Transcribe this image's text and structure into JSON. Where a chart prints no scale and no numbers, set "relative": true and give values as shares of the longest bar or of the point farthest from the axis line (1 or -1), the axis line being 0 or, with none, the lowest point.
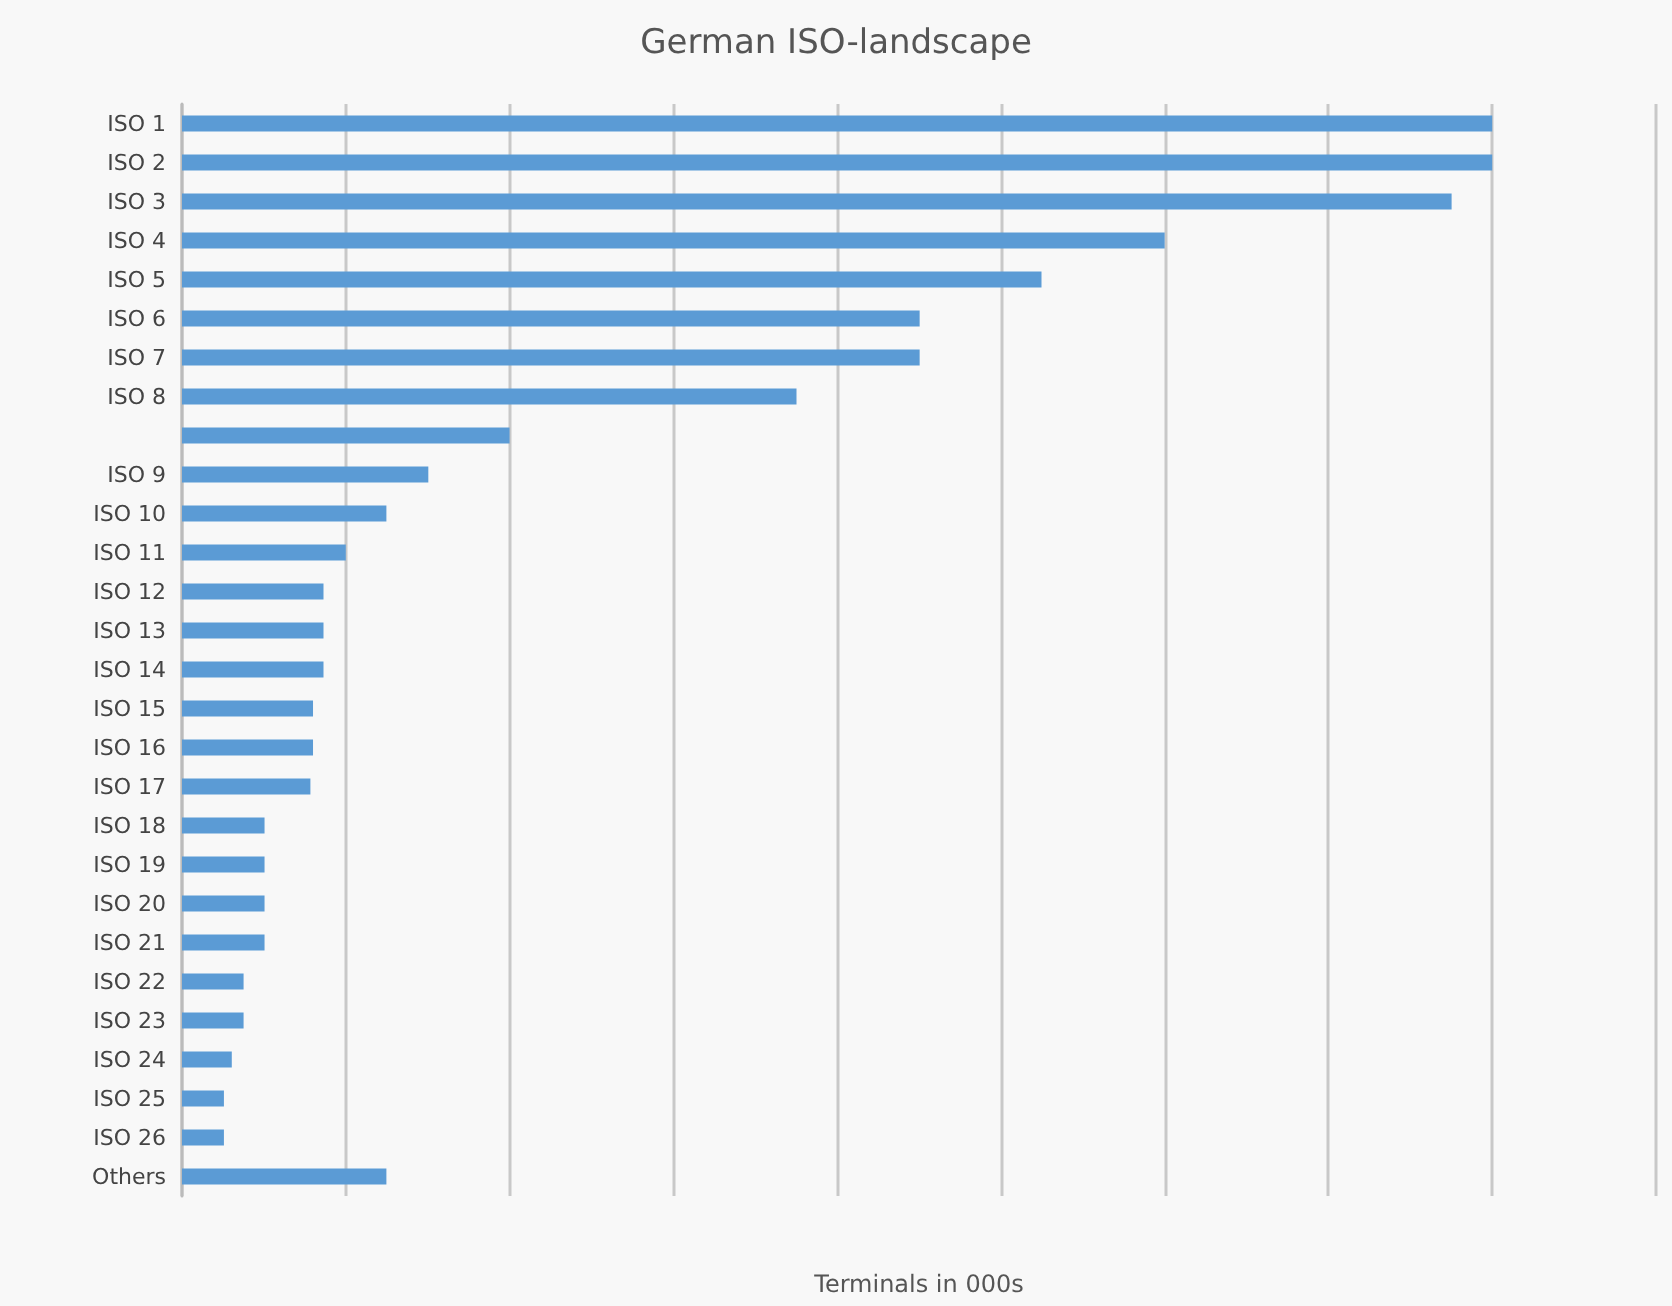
{
  "chart_data": {
    "type": "bar",
    "orientation": "horizontal",
    "relative": true,
    "title": "German ISO-landscape",
    "xlabel": "Terminals in 000s",
    "grid": "x",
    "color": "#5b9bd5",
    "categories": [
      "ISO 1",
      "ISO 2",
      "ISO 3",
      "ISO 4",
      "ISO 5",
      "ISO 6",
      "ISO 7",
      "ISO 8",
      null,
      "ISO 9",
      "ISO 10",
      "ISO 11",
      "ISO 12",
      "ISO 13",
      "ISO 14",
      "ISO 15",
      "ISO 16",
      "ISO 17",
      "ISO 18",
      "ISO 19",
      "ISO 20",
      "ISO 21",
      "ISO 22",
      "ISO 23",
      "ISO 24",
      "ISO 25",
      "ISO 26",
      "Others"
    ],
    "values": [
      1,
      1,
      0.969,
      0.75,
      0.656,
      0.563,
      0.563,
      0.469,
      0.25,
      0.188,
      0.156,
      0.125,
      0.108,
      0.108,
      0.108,
      0.1,
      0.1,
      0.098,
      0.063,
      0.063,
      0.063,
      0.063,
      0.047,
      0.047,
      0.038,
      0.032,
      0.032,
      0.156
    ]
  }
}
